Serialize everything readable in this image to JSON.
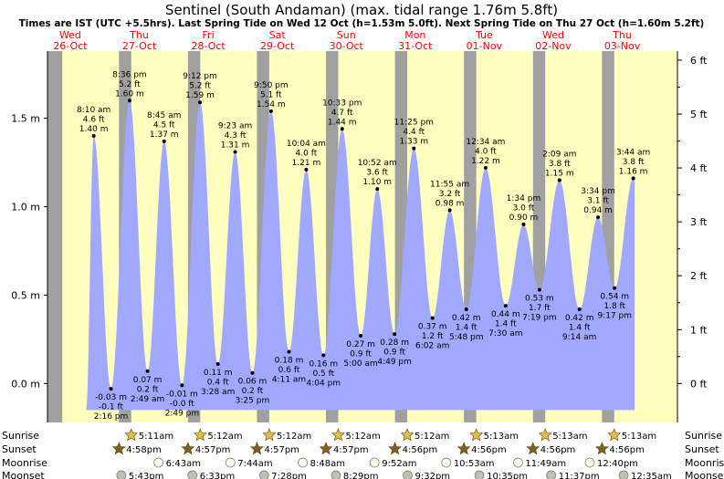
{
  "chart_data": {
    "type": "area",
    "title": "Sentinel (South Andaman) (max. tidal range 1.76m 5.8ft)",
    "subtitle": "Times are IST (UTC +5.5hrs). Last Spring Tide on Wed 12 Oct (h=1.53m 5.0ft). Next Spring Tide on Thu 27 Oct (h=1.60m 5.2ft)",
    "ylim_m": [
      -0.22,
      1.88
    ],
    "xlim_days": [
      -0.33,
      8.8
    ],
    "y_left_ticks": [
      {
        "v": 0.0,
        "label": "0.0 m"
      },
      {
        "v": 0.5,
        "label": "0.5 m"
      },
      {
        "v": 1.0,
        "label": "1.0 m"
      },
      {
        "v": 1.5,
        "label": "1.5 m"
      }
    ],
    "y_right_ticks": [
      {
        "v": 0,
        "label": "0 ft"
      },
      {
        "v": 1,
        "label": "1 ft"
      },
      {
        "v": 2,
        "label": "2 ft"
      },
      {
        "v": 3,
        "label": "3 ft"
      },
      {
        "v": 4,
        "label": "4 ft"
      },
      {
        "v": 5,
        "label": "5 ft"
      },
      {
        "v": 6,
        "label": "6 ft"
      }
    ],
    "days": [
      {
        "dow": "Wed",
        "date": "26-Oct",
        "weekend": false
      },
      {
        "dow": "Thu",
        "date": "27-Oct",
        "weekend": false
      },
      {
        "dow": "Fri",
        "date": "28-Oct",
        "weekend": false
      },
      {
        "dow": "Sat",
        "date": "29-Oct",
        "weekend": true
      },
      {
        "dow": "Sun",
        "date": "30-Oct",
        "weekend": true
      },
      {
        "dow": "Mon",
        "date": "31-Oct",
        "weekend": false
      },
      {
        "dow": "Tue",
        "date": "01-Nov",
        "weekend": false
      },
      {
        "dow": "Wed",
        "date": "02-Nov",
        "weekend": false
      },
      {
        "dow": "Thu",
        "date": "03-Nov",
        "weekend": false
      }
    ],
    "tides": [
      {
        "t": 0.34,
        "m": 1.4,
        "ft": "4.6 ft",
        "h": "1.40 m",
        "time": "8:10 am",
        "type": "high"
      },
      {
        "t": 0.59,
        "m": -0.03,
        "ft": "-0.1 ft",
        "h": "-0.03 m",
        "time": "2:16 pm",
        "type": "low"
      },
      {
        "t": 0.86,
        "m": 1.6,
        "ft": "5.2 ft",
        "h": "1.60 m",
        "time": "8:36 pm",
        "type": "high"
      },
      {
        "t": 1.12,
        "m": 0.07,
        "ft": "0.2 ft",
        "h": "0.07 m",
        "time": "2:49 am",
        "type": "low"
      },
      {
        "t": 1.36,
        "m": 1.37,
        "ft": "4.5 ft",
        "h": "1.37 m",
        "time": "8:45 am",
        "type": "high"
      },
      {
        "t": 1.62,
        "m": -0.01,
        "ft": "-0.0 ft",
        "h": "-0.01 m",
        "time": "2:49 pm",
        "type": "low"
      },
      {
        "t": 1.88,
        "m": 1.59,
        "ft": "5.2 ft",
        "h": "1.59 m",
        "time": "9:12 pm",
        "type": "high"
      },
      {
        "t": 2.14,
        "m": 0.11,
        "ft": "0.4 ft",
        "h": "0.11 m",
        "time": "3:28 am",
        "type": "low"
      },
      {
        "t": 2.39,
        "m": 1.31,
        "ft": "4.3 ft",
        "h": "1.31 m",
        "time": "9:23 am",
        "type": "high"
      },
      {
        "t": 2.64,
        "m": 0.06,
        "ft": "0.2 ft",
        "h": "0.06 m",
        "time": "3:25 pm",
        "type": "low"
      },
      {
        "t": 2.91,
        "m": 1.54,
        "ft": "5.1 ft",
        "h": "1.54 m",
        "time": "9:50 pm",
        "type": "high"
      },
      {
        "t": 3.17,
        "m": 0.18,
        "ft": "0.6 ft",
        "h": "0.18 m",
        "time": "4:11 am",
        "type": "low"
      },
      {
        "t": 3.42,
        "m": 1.21,
        "ft": "4.0 ft",
        "h": "1.21 m",
        "time": "10:04 am",
        "type": "high"
      },
      {
        "t": 3.67,
        "m": 0.16,
        "ft": "0.5 ft",
        "h": "0.16 m",
        "time": "4:04 pm",
        "type": "low"
      },
      {
        "t": 3.94,
        "m": 1.44,
        "ft": "4.7 ft",
        "h": "1.44 m",
        "time": "10:33 pm",
        "type": "high"
      },
      {
        "t": 4.21,
        "m": 0.27,
        "ft": "0.9 ft",
        "h": "0.27 m",
        "time": "5:00 am",
        "type": "low"
      },
      {
        "t": 4.45,
        "m": 1.1,
        "ft": "3.6 ft",
        "h": "1.10 m",
        "time": "10:52 am",
        "type": "high"
      },
      {
        "t": 4.7,
        "m": 0.28,
        "ft": "0.9 ft",
        "h": "0.28 m",
        "time": "4:49 pm",
        "type": "low"
      },
      {
        "t": 4.98,
        "m": 1.33,
        "ft": "4.4 ft",
        "h": "1.33 m",
        "time": "11:25 pm",
        "type": "high"
      },
      {
        "t": 5.25,
        "m": 0.37,
        "ft": "1.2 ft",
        "h": "0.37 m",
        "time": "6:02 am",
        "type": "low"
      },
      {
        "t": 5.5,
        "m": 0.98,
        "ft": "3.2 ft",
        "h": "0.98 m",
        "time": "11:55 am",
        "type": "high"
      },
      {
        "t": 5.74,
        "m": 0.42,
        "ft": "1.4 ft",
        "h": "0.42 m",
        "time": "5:48 pm",
        "type": "low"
      },
      {
        "t": 6.02,
        "m": 1.22,
        "ft": "4.0 ft",
        "h": "1.22 m",
        "time": "12:34 am",
        "type": "high"
      },
      {
        "t": 6.31,
        "m": 0.44,
        "ft": "1.4 ft",
        "h": "0.44 m",
        "time": "7:30 am",
        "type": "low"
      },
      {
        "t": 6.57,
        "m": 0.9,
        "ft": "3.0 ft",
        "h": "0.90 m",
        "time": "1:34 pm",
        "type": "high"
      },
      {
        "t": 6.8,
        "m": 0.53,
        "ft": "1.7 ft",
        "h": "0.53 m",
        "time": "7:19 pm",
        "type": "low"
      },
      {
        "t": 7.09,
        "m": 1.15,
        "ft": "3.8 ft",
        "h": "1.15 m",
        "time": "2:09 am",
        "type": "high"
      },
      {
        "t": 7.38,
        "m": 0.42,
        "ft": "1.4 ft",
        "h": "0.42 m",
        "time": "9:14 am",
        "type": "low"
      },
      {
        "t": 7.65,
        "m": 0.94,
        "ft": "3.1 ft",
        "h": "0.94 m",
        "time": "3:34 pm",
        "type": "high"
      },
      {
        "t": 7.89,
        "m": 0.54,
        "ft": "1.8 ft",
        "h": "0.54 m",
        "time": "9:17 pm",
        "type": "low"
      },
      {
        "t": 8.16,
        "m": 1.16,
        "ft": "3.8 ft",
        "h": "1.16 m",
        "time": "3:44 am",
        "type": "high"
      }
    ],
    "daylight": [
      {
        "rise": -0.116,
        "set": 0.706
      },
      {
        "rise": 0.884,
        "set": 1.706
      },
      {
        "rise": 1.884,
        "set": 2.706
      },
      {
        "rise": 2.884,
        "set": 3.706
      },
      {
        "rise": 3.884,
        "set": 4.706
      },
      {
        "rise": 4.884,
        "set": 5.706
      },
      {
        "rise": 5.884,
        "set": 6.706
      },
      {
        "rise": 6.884,
        "set": 7.706
      },
      {
        "rise": 7.884,
        "set": 8.8
      }
    ],
    "astro": {
      "rows": [
        {
          "key": "sunrise",
          "label": "Sunrise",
          "kind": "sun-rise"
        },
        {
          "key": "sunset",
          "label": "Sunset",
          "kind": "sun-set"
        },
        {
          "key": "moonrise",
          "label": "Moonrise",
          "kind": "moon-rise"
        },
        {
          "key": "moonset",
          "label": "Moonset",
          "kind": "moon-set"
        }
      ],
      "sunrise": [
        {
          "t": 0.884,
          "label": "5:11am"
        },
        {
          "t": 1.884,
          "label": "5:12am"
        },
        {
          "t": 2.884,
          "label": "5:12am"
        },
        {
          "t": 3.884,
          "label": "5:12am"
        },
        {
          "t": 4.884,
          "label": "5:12am"
        },
        {
          "t": 5.884,
          "label": "5:13am"
        },
        {
          "t": 6.884,
          "label": "5:13am"
        },
        {
          "t": 7.884,
          "label": "5:13am"
        }
      ],
      "sunset": [
        {
          "t": 0.706,
          "label": "4:58pm"
        },
        {
          "t": 1.706,
          "label": "4:57pm"
        },
        {
          "t": 2.706,
          "label": "4:57pm"
        },
        {
          "t": 3.706,
          "label": "4:57pm"
        },
        {
          "t": 4.706,
          "label": "4:56pm"
        },
        {
          "t": 5.706,
          "label": "4:56pm"
        },
        {
          "t": 6.706,
          "label": "4:56pm"
        },
        {
          "t": 7.706,
          "label": "4:56pm"
        }
      ],
      "moonrise": [
        {
          "t": 1.28,
          "label": "6:43am"
        },
        {
          "t": 2.32,
          "label": "7:44am"
        },
        {
          "t": 3.37,
          "label": "8:48am"
        },
        {
          "t": 4.41,
          "label": "9:52am"
        },
        {
          "t": 5.45,
          "label": "10:53am"
        },
        {
          "t": 6.49,
          "label": "11:49am"
        },
        {
          "t": 7.53,
          "label": "12:40pm"
        }
      ],
      "moonset": [
        {
          "t": 0.74,
          "label": "5:43pm"
        },
        {
          "t": 1.77,
          "label": "6:33pm"
        },
        {
          "t": 2.81,
          "label": "7:28pm"
        },
        {
          "t": 3.85,
          "label": "8:29pm"
        },
        {
          "t": 4.89,
          "label": "9:32pm"
        },
        {
          "t": 5.93,
          "label": "10:35pm"
        },
        {
          "t": 6.97,
          "label": "11:37pm"
        },
        {
          "t": 8.02,
          "label": "12:35am"
        }
      ]
    },
    "colors": {
      "day": "#ffffc0",
      "night": "#a0a0a0",
      "water": "#a0a8ff",
      "weekday_text": "#ff0000",
      "weekend_text": "#ff0000",
      "star_rise": "#e0c040",
      "star_set": "#806020",
      "moon_rise": "#fffff0",
      "moon_set": "#c0c0b0"
    }
  }
}
